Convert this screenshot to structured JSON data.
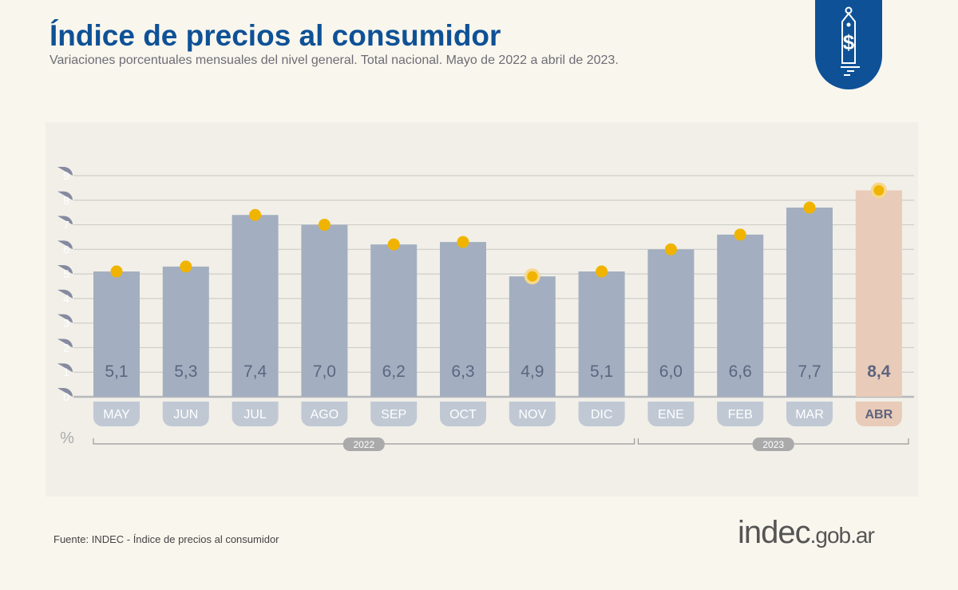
{
  "header": {
    "title": "Índice de precios al consumidor",
    "subtitle": "Variaciones porcentuales mensuales del nivel general. Total nacional. Mayo de 2022 a abril de 2023."
  },
  "chart_data": {
    "type": "bar",
    "categories": [
      "MAY",
      "JUN",
      "JUL",
      "AGO",
      "SEP",
      "OCT",
      "NOV",
      "DIC",
      "ENE",
      "FEB",
      "MAR",
      "ABR"
    ],
    "values": [
      5.1,
      5.3,
      7.4,
      7.0,
      6.2,
      6.3,
      4.9,
      5.1,
      6.0,
      6.6,
      7.7,
      8.4
    ],
    "labels": [
      "5,1",
      "5,3",
      "7,4",
      "7,0",
      "6,2",
      "6,3",
      "4,9",
      "5,1",
      "6,0",
      "6,6",
      "7,7",
      "8,4"
    ],
    "ylabel": "%",
    "ylim": [
      0,
      9
    ],
    "yticks": [
      0,
      1,
      2,
      3,
      4,
      5,
      6,
      7,
      8,
      9
    ],
    "grid": true,
    "groups": [
      {
        "label": "2022",
        "from": "MAY",
        "to": "DIC"
      },
      {
        "label": "2023",
        "from": "ENE",
        "to": "ABR"
      }
    ],
    "highlight": "ABR",
    "colors": {
      "bar": "#a3afc0",
      "highlight_bar": "#e8cbb8",
      "marker": "#f0b400",
      "tick_badge": "#858aa0",
      "label": "#5d6480",
      "title": "#0e5196"
    }
  },
  "footer": {
    "source": "Fuente: INDEC - Índice de precios al consumidor",
    "brand_main": "indec",
    "brand_suffix": ".gob.ar"
  }
}
